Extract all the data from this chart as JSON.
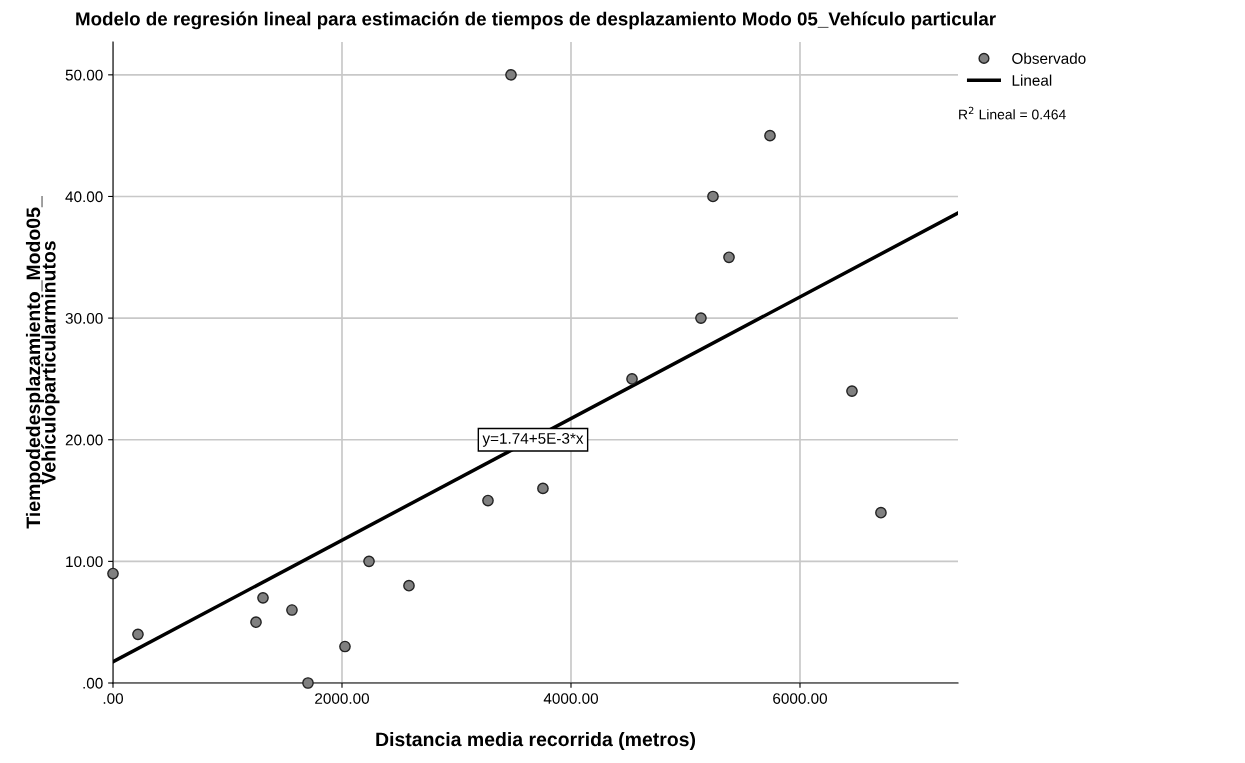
{
  "chart_data": {
    "type": "scatter",
    "title": "Modelo de regresión lineal para estimación de tiempos de desplazamiento Modo 05_Vehículo particular",
    "xlabel": "Distancia media recorrida (metros)",
    "ylabel": "Tiempodedesplazamiento_Modo05_\nVehículoparticularminutos",
    "series": [
      {
        "name": "Observado",
        "marker": "circle",
        "color": "#808080",
        "x": [
          0,
          218,
          1249,
          1310,
          1563,
          1703,
          2026,
          2236,
          2585,
          3275,
          3476,
          3755,
          4533,
          5135,
          5240,
          5380,
          5738,
          6454,
          6707
        ],
        "values": [
          9,
          4,
          5,
          7,
          6,
          0,
          3,
          10,
          8,
          15,
          50,
          16,
          25,
          30,
          40,
          35,
          45,
          24,
          14
        ]
      },
      {
        "name": "Lineal",
        "type": "line",
        "color": "#000000",
        "x": [
          0,
          7380
        ],
        "values": [
          1.74,
          38.64
        ]
      }
    ],
    "xlim": [
      0,
      7380
    ],
    "ylim": [
      0,
      52.7
    ],
    "xticks": [
      {
        "value": 0,
        "label": ".00"
      },
      {
        "value": 2000,
        "label": "2000.00"
      },
      {
        "value": 4000,
        "label": "4000.00"
      },
      {
        "value": 6000,
        "label": "6000.00"
      }
    ],
    "yticks": [
      {
        "value": 0,
        "label": ".00"
      },
      {
        "value": 10,
        "label": "10.00"
      },
      {
        "value": 20,
        "label": "20.00"
      },
      {
        "value": 30,
        "label": "30.00"
      },
      {
        "value": 40,
        "label": "40.00"
      },
      {
        "value": 50,
        "label": "50.00"
      }
    ],
    "annotations": [
      {
        "text": "y=1.74+5E-3*x",
        "x": 3668,
        "y": 20
      },
      "R$^{2}$ Lineal = 0.464"
    ],
    "grid": true,
    "legend": "top right",
    "line_style": "solid"
  }
}
